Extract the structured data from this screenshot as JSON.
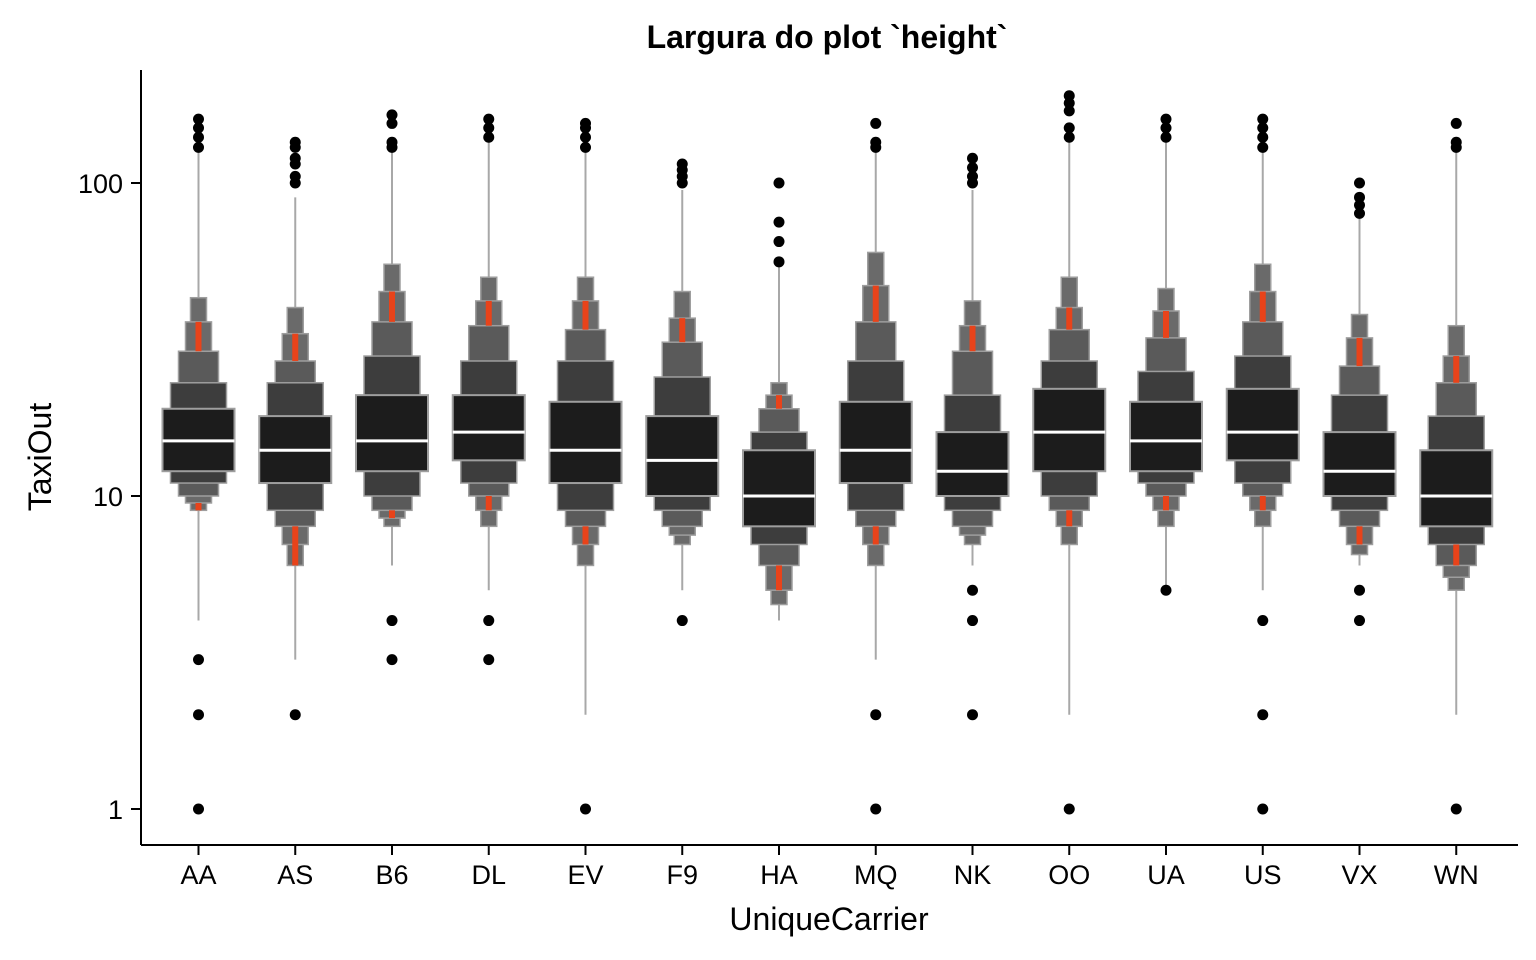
{
  "chart_data": {
    "type": "letter-value boxplot",
    "title": "Largura do plot `height`",
    "xlabel": "UniqueCarrier",
    "ylabel": "TaxiOut",
    "y_scale": "log10",
    "ylim": [
      0.9,
      215
    ],
    "yticks": [
      1,
      10,
      100
    ],
    "ytick_labels": [
      "1",
      "10",
      "100"
    ],
    "grid": false,
    "legend": "none",
    "colors": {
      "box_level_1": "#1c1c1c",
      "box_level_2": "#3d3d3d",
      "box_level_3": "#5a5a5a",
      "box_level_4": "#6a6a6a",
      "outline": "#9e9e9e",
      "median": "#ffffff",
      "tail_highlight": "#e8431a",
      "whisker": "#a8a8a8",
      "outlier": "#000000"
    },
    "categories": [
      "AA",
      "AS",
      "B6",
      "DL",
      "EV",
      "F9",
      "HA",
      "MQ",
      "NK",
      "OO",
      "UA",
      "US",
      "VX",
      "WN"
    ],
    "carriers": [
      {
        "name": "AA",
        "median": 15,
        "levels": [
          [
            12,
            19
          ],
          [
            11,
            23
          ],
          [
            10,
            29
          ],
          [
            9.5,
            36
          ],
          [
            9,
            43
          ]
        ],
        "red": [
          [
            9,
            9.5
          ],
          [
            29,
            36
          ]
        ],
        "whisker": [
          4,
          130
        ],
        "outliers": [
          1,
          2,
          3,
          130,
          140,
          150,
          160
        ]
      },
      {
        "name": "AS",
        "median": 14,
        "levels": [
          [
            11,
            18
          ],
          [
            9,
            23
          ],
          [
            8,
            27
          ],
          [
            7,
            33
          ],
          [
            6,
            40
          ]
        ],
        "red": [
          [
            6,
            8
          ],
          [
            27,
            33
          ]
        ],
        "whisker": [
          3,
          90
        ],
        "outliers": [
          2,
          100,
          105,
          115,
          120,
          130,
          135
        ]
      },
      {
        "name": "B6",
        "median": 15,
        "levels": [
          [
            12,
            21
          ],
          [
            10,
            28
          ],
          [
            9,
            36
          ],
          [
            8.5,
            45
          ],
          [
            8,
            55
          ]
        ],
        "red": [
          [
            8.5,
            9
          ],
          [
            36,
            45
          ]
        ],
        "whisker": [
          6,
          140
        ],
        "outliers": [
          3,
          4,
          130,
          135,
          155,
          165
        ]
      },
      {
        "name": "DL",
        "median": 16,
        "levels": [
          [
            13,
            21
          ],
          [
            11,
            27
          ],
          [
            10,
            35
          ],
          [
            9,
            42
          ],
          [
            8,
            50
          ]
        ],
        "red": [
          [
            9,
            10
          ],
          [
            35,
            42
          ]
        ],
        "whisker": [
          5,
          140
        ],
        "outliers": [
          3,
          4,
          140,
          150,
          160
        ]
      },
      {
        "name": "EV",
        "median": 14,
        "levels": [
          [
            11,
            20
          ],
          [
            9,
            27
          ],
          [
            8,
            34
          ],
          [
            7,
            42
          ],
          [
            6,
            50
          ]
        ],
        "red": [
          [
            7,
            8
          ],
          [
            34,
            42
          ]
        ],
        "whisker": [
          2,
          130
        ],
        "outliers": [
          1,
          130,
          140,
          150,
          155
        ]
      },
      {
        "name": "F9",
        "median": 13,
        "levels": [
          [
            10,
            18
          ],
          [
            9,
            24
          ],
          [
            8,
            31
          ],
          [
            7.5,
            37
          ],
          [
            7,
            45
          ]
        ],
        "red": [
          [
            31,
            37
          ]
        ],
        "whisker": [
          5,
          95
        ],
        "outliers": [
          4,
          100,
          105,
          110,
          115
        ]
      },
      {
        "name": "HA",
        "median": 10,
        "levels": [
          [
            8,
            14
          ],
          [
            7,
            16
          ],
          [
            6,
            19
          ],
          [
            5,
            21
          ],
          [
            4.5,
            23
          ]
        ],
        "red": [
          [
            5,
            6
          ],
          [
            19,
            21
          ]
        ],
        "whisker": [
          4,
          55
        ],
        "outliers": [
          56,
          65,
          75,
          100
        ]
      },
      {
        "name": "MQ",
        "median": 14,
        "levels": [
          [
            11,
            20
          ],
          [
            9,
            27
          ],
          [
            8,
            36
          ],
          [
            7,
            47
          ],
          [
            6,
            60
          ]
        ],
        "red": [
          [
            7,
            8
          ],
          [
            36,
            47
          ]
        ],
        "whisker": [
          3,
          130
        ],
        "outliers": [
          1,
          2,
          130,
          135,
          155
        ]
      },
      {
        "name": "NK",
        "median": 12,
        "levels": [
          [
            10,
            16
          ],
          [
            9,
            21
          ],
          [
            8,
            29
          ],
          [
            7.5,
            35
          ],
          [
            7,
            42
          ]
        ],
        "red": [
          [
            29,
            35
          ]
        ],
        "whisker": [
          6,
          95
        ],
        "outliers": [
          2,
          4,
          5,
          100,
          105,
          112,
          120
        ]
      },
      {
        "name": "OO",
        "median": 16,
        "levels": [
          [
            12,
            22
          ],
          [
            10,
            27
          ],
          [
            9,
            34
          ],
          [
            8,
            40
          ],
          [
            7,
            50
          ]
        ],
        "red": [
          [
            8,
            9
          ],
          [
            34,
            40
          ]
        ],
        "whisker": [
          2,
          140
        ],
        "outliers": [
          1,
          140,
          150,
          170,
          180,
          190
        ]
      },
      {
        "name": "UA",
        "median": 15,
        "levels": [
          [
            12,
            20
          ],
          [
            11,
            25
          ],
          [
            10,
            32
          ],
          [
            9,
            39
          ],
          [
            8,
            46
          ]
        ],
        "red": [
          [
            9,
            10
          ],
          [
            32,
            39
          ]
        ],
        "whisker": [
          5,
          140
        ],
        "outliers": [
          5,
          140,
          150,
          160
        ]
      },
      {
        "name": "US",
        "median": 16,
        "levels": [
          [
            13,
            22
          ],
          [
            11,
            28
          ],
          [
            10,
            36
          ],
          [
            9,
            45
          ],
          [
            8,
            55
          ]
        ],
        "red": [
          [
            9,
            10
          ],
          [
            36,
            45
          ]
        ],
        "whisker": [
          5,
          140
        ],
        "outliers": [
          1,
          2,
          4,
          130,
          140,
          150,
          160
        ]
      },
      {
        "name": "VX",
        "median": 12,
        "levels": [
          [
            10,
            16
          ],
          [
            9,
            21
          ],
          [
            8,
            26
          ],
          [
            7,
            32
          ],
          [
            6.5,
            38
          ]
        ],
        "red": [
          [
            7,
            8
          ],
          [
            26,
            32
          ]
        ],
        "whisker": [
          6,
          78
        ],
        "outliers": [
          4,
          5,
          80,
          85,
          90,
          100
        ]
      },
      {
        "name": "WN",
        "median": 10,
        "levels": [
          [
            8,
            14
          ],
          [
            7,
            18
          ],
          [
            6,
            23
          ],
          [
            5.5,
            28
          ],
          [
            5,
            35
          ]
        ],
        "red": [
          [
            6,
            7
          ],
          [
            23,
            28
          ]
        ],
        "whisker": [
          2,
          130
        ],
        "outliers": [
          1,
          130,
          135,
          155
        ]
      }
    ]
  }
}
